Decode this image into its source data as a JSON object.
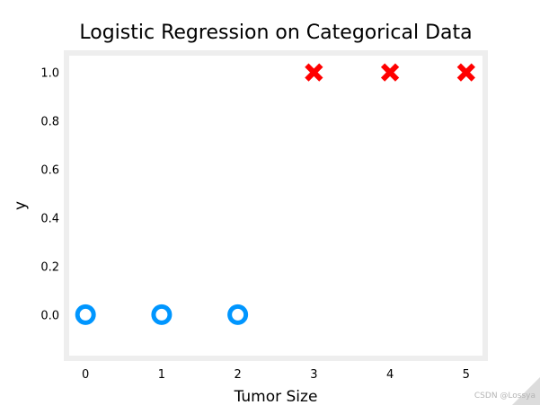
{
  "chart_data": {
    "type": "scatter",
    "title": "Logistic Regression on Categorical Data",
    "xlabel": "Tumor Size",
    "ylabel": "y",
    "xlim": [
      -0.25,
      5.25
    ],
    "ylim": [
      -0.18,
      1.08
    ],
    "x_ticks": [
      "0",
      "1",
      "2",
      "3",
      "4",
      "5"
    ],
    "y_ticks": [
      "0.0",
      "0.2",
      "0.4",
      "0.6",
      "0.8",
      "1.0"
    ],
    "grid": false,
    "legend": false,
    "series": [
      {
        "marker": "circle",
        "color": "#0096ff",
        "x": [
          0,
          1,
          2
        ],
        "y": [
          0,
          0,
          0
        ]
      },
      {
        "marker": "x",
        "color": "#ff0000",
        "x": [
          3,
          4,
          5
        ],
        "y": [
          1,
          1,
          1
        ]
      }
    ]
  },
  "watermark": "CSDN @Lossya"
}
